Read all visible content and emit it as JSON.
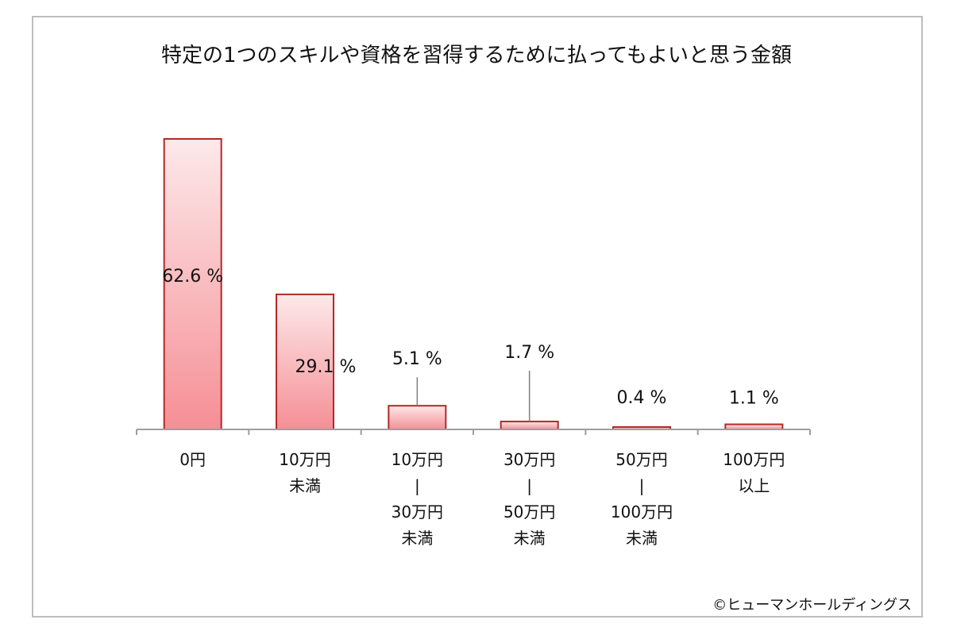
{
  "chart_data": {
    "type": "bar",
    "title": "特定の1つのスキルや資格を習得するために払ってもよいと思う金額",
    "categories": [
      [
        "0円"
      ],
      [
        "10万円",
        "未満"
      ],
      [
        "10万円",
        "|",
        "30万円",
        "未満"
      ],
      [
        "30万円",
        "|",
        "50万円",
        "未満"
      ],
      [
        "50万円",
        "|",
        "100万円",
        "未満"
      ],
      [
        "100万円",
        "以上"
      ]
    ],
    "values": [
      62.6,
      29.1,
      5.1,
      1.7,
      0.4,
      1.1
    ],
    "data_labels": [
      "62.6 %",
      "29.1 %",
      "5.1 %",
      "1.7 %",
      "0.4 %",
      "1.1 %"
    ],
    "unit": "%",
    "ylim": [
      0,
      62.6
    ],
    "grid": false,
    "legend": "none",
    "colors": {
      "bar_fill_top": "#fde9ea",
      "bar_fill_bottom": "#f58f95",
      "bar_stroke": "#b32828",
      "axis": "#9e9e9e",
      "leader_line": "#808080",
      "frame": "#bdbdbd",
      "text": "#111111"
    }
  },
  "source": "©ヒューマンホールディングス"
}
